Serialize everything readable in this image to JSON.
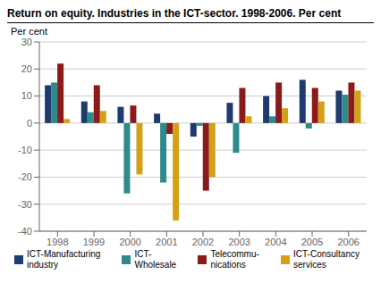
{
  "chart_data": {
    "type": "bar",
    "title": "Return on equity. Industries in the ICT-sector. 1998-2006. Per cent",
    "ylabel": "Per cent",
    "categories": [
      "1998",
      "1999",
      "2000",
      "2001",
      "2002",
      "2003",
      "2004",
      "2005",
      "2006"
    ],
    "series": [
      {
        "name": "ICT-Manufacturing\nindustry",
        "color": "#1F3A6E",
        "values": [
          14,
          8,
          6,
          3.5,
          -5,
          7.5,
          10,
          16,
          12
        ]
      },
      {
        "name": "ICT-\nWholesale",
        "color": "#2D8B8B",
        "values": [
          15,
          4,
          -26,
          -22,
          -1,
          -11,
          2.5,
          -2,
          10.5
        ]
      },
      {
        "name": "Telecommu-\nnications",
        "color": "#8B1A1A",
        "values": [
          22,
          14,
          6.5,
          -4,
          -25,
          13,
          15,
          13,
          15
        ]
      },
      {
        "name": "ICT-Consultancy\nservices",
        "color": "#D4A017",
        "values": [
          1.5,
          4.5,
          -19,
          -36,
          -20,
          2.5,
          5.5,
          8,
          12
        ]
      }
    ],
    "ylim": [
      -40,
      30
    ],
    "yticks": [
      -40,
      -30,
      -20,
      -10,
      0,
      10,
      20,
      30
    ],
    "grid": true,
    "legend": "bottom"
  }
}
